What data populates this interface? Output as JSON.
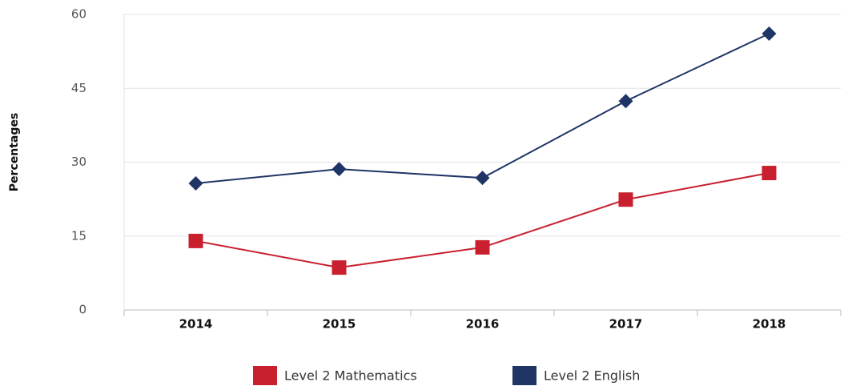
{
  "chart_data": {
    "type": "line",
    "y_label": "Percentages",
    "categories": [
      "2014",
      "2015",
      "2016",
      "2017",
      "2018"
    ],
    "series": [
      {
        "name": "Level 2 Mathematics",
        "color": "#c8202f",
        "marker": "square",
        "values": [
          14.0,
          8.6,
          12.7,
          22.4,
          27.8
        ]
      },
      {
        "name": "Level 2 English",
        "color": "#1f3566",
        "marker": "diamond",
        "values": [
          25.7,
          28.6,
          26.8,
          42.4,
          56.1
        ]
      }
    ],
    "ylim": [
      0,
      60
    ],
    "yticks": [
      0,
      15,
      30,
      45,
      60
    ],
    "grid": true
  }
}
